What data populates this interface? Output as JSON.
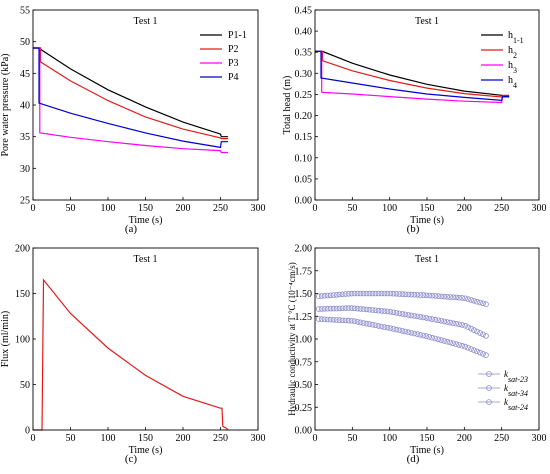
{
  "figure": {
    "panel_letters": [
      "(a)",
      "(b)",
      "(c)",
      "(d)"
    ]
  },
  "chart_data": [
    {
      "id": "a",
      "type": "line",
      "title": "Test 1",
      "xlabel": "Time (s)",
      "ylabel": "Pore water pressure (kPa)",
      "xlim": [
        0,
        300
      ],
      "ylim": [
        25,
        55
      ],
      "xticks": [
        0,
        50,
        100,
        150,
        200,
        250,
        300
      ],
      "yticks": [
        25,
        30,
        35,
        40,
        45,
        50,
        55
      ],
      "legend_position": "top-right",
      "series": [
        {
          "name": "P1-1",
          "color": "#000000",
          "points": [
            [
              0,
              49
            ],
            [
              10,
              49
            ],
            [
              10,
              48.8
            ],
            [
              50,
              45.7
            ],
            [
              100,
              42.4
            ],
            [
              150,
              39.7
            ],
            [
              200,
              37.3
            ],
            [
              250,
              35.4
            ],
            [
              251,
              35
            ],
            [
              260,
              35
            ]
          ]
        },
        {
          "name": "P2",
          "color": "#e41a1c",
          "points": [
            [
              0,
              49
            ],
            [
              10,
              49
            ],
            [
              10,
              46.8
            ],
            [
              50,
              43.8
            ],
            [
              100,
              40.7
            ],
            [
              150,
              38.1
            ],
            [
              200,
              36.2
            ],
            [
              250,
              34.8
            ],
            [
              251,
              34.7
            ],
            [
              260,
              34.7
            ]
          ]
        },
        {
          "name": "P3",
          "color": "#ff00ff",
          "points": [
            [
              0,
              49
            ],
            [
              9,
              49
            ],
            [
              9,
              35.6
            ],
            [
              50,
              34.9
            ],
            [
              100,
              34.2
            ],
            [
              150,
              33.6
            ],
            [
              200,
              33.1
            ],
            [
              250,
              32.8
            ],
            [
              251,
              32.5
            ],
            [
              260,
              32.5
            ]
          ]
        },
        {
          "name": "P4",
          "color": "#0000cd",
          "points": [
            [
              0,
              49
            ],
            [
              8,
              49
            ],
            [
              8,
              40.3
            ],
            [
              50,
              38.7
            ],
            [
              100,
              37.1
            ],
            [
              150,
              35.6
            ],
            [
              200,
              34.3
            ],
            [
              250,
              33.3
            ],
            [
              251,
              34.2
            ],
            [
              260,
              34.2
            ]
          ]
        }
      ]
    },
    {
      "id": "b",
      "type": "line",
      "title": "Test 1",
      "xlabel": "Time (s)",
      "ylabel": "Total head (m)",
      "xlim": [
        0,
        300
      ],
      "ylim": [
        0.0,
        0.45
      ],
      "xticks": [
        0,
        50,
        100,
        150,
        200,
        250,
        300
      ],
      "yticks": [
        0.0,
        0.05,
        0.1,
        0.15,
        0.2,
        0.25,
        0.3,
        0.35,
        0.4,
        0.45
      ],
      "ytick_labels": [
        "0.00",
        "0.05",
        "0.10",
        "0.15",
        "0.20",
        "0.25",
        "0.30",
        "0.35",
        "0.40",
        "0.45"
      ],
      "legend_position": "top-right",
      "legend_labels": [
        {
          "base": "h",
          "sub": "1-1"
        },
        {
          "base": "h",
          "sub": "2"
        },
        {
          "base": "h",
          "sub": "3"
        },
        {
          "base": "h",
          "sub": "4"
        }
      ],
      "series": [
        {
          "name": "h1-1",
          "color": "#000000",
          "points": [
            [
              0,
              0.352
            ],
            [
              10,
              0.352
            ],
            [
              10,
              0.352
            ],
            [
              50,
              0.324
            ],
            [
              100,
              0.296
            ],
            [
              150,
              0.274
            ],
            [
              200,
              0.258
            ],
            [
              250,
              0.248
            ],
            [
              251,
              0.246
            ],
            [
              260,
              0.246
            ]
          ]
        },
        {
          "name": "h2",
          "color": "#e41a1c",
          "points": [
            [
              0,
              0.352
            ],
            [
              10,
              0.352
            ],
            [
              10,
              0.33
            ],
            [
              50,
              0.306
            ],
            [
              100,
              0.283
            ],
            [
              150,
              0.265
            ],
            [
              200,
              0.252
            ],
            [
              250,
              0.244
            ],
            [
              251,
              0.248
            ],
            [
              260,
              0.248
            ]
          ]
        },
        {
          "name": "h3",
          "color": "#ff00ff",
          "points": [
            [
              0,
              0.352
            ],
            [
              9,
              0.352
            ],
            [
              9,
              0.255
            ],
            [
              50,
              0.251
            ],
            [
              100,
              0.245
            ],
            [
              150,
              0.239
            ],
            [
              200,
              0.234
            ],
            [
              250,
              0.231
            ],
            [
              251,
              0.244
            ],
            [
              260,
              0.244
            ]
          ]
        },
        {
          "name": "h4",
          "color": "#0000cd",
          "points": [
            [
              0,
              0.352
            ],
            [
              8,
              0.352
            ],
            [
              8,
              0.289
            ],
            [
              50,
              0.277
            ],
            [
              100,
              0.263
            ],
            [
              150,
              0.251
            ],
            [
              200,
              0.243
            ],
            [
              250,
              0.236
            ],
            [
              251,
              0.245
            ],
            [
              260,
              0.245
            ]
          ]
        }
      ]
    },
    {
      "id": "c",
      "type": "line",
      "title": "Test 1",
      "xlabel": "Time (s)",
      "ylabel": "Flux (ml/min)",
      "xlim": [
        0,
        300
      ],
      "ylim": [
        0,
        200
      ],
      "xticks": [
        0,
        50,
        100,
        150,
        200,
        250,
        300
      ],
      "yticks": [
        0,
        50,
        100,
        150,
        200
      ],
      "series": [
        {
          "name": "",
          "color": "#e41a1c",
          "points": [
            [
              0,
              0
            ],
            [
              12,
              0
            ],
            [
              14,
              165
            ],
            [
              50,
              128
            ],
            [
              100,
              90
            ],
            [
              150,
              60
            ],
            [
              200,
              37
            ],
            [
              250,
              24
            ],
            [
              252,
              24
            ],
            [
              253,
              4
            ],
            [
              258,
              2
            ],
            [
              260,
              0
            ]
          ]
        }
      ]
    },
    {
      "id": "d",
      "type": "scatter",
      "title": "Test 1",
      "xlabel": "Time (s)",
      "ylabel": "Hydraulic conductivity at T °C (10⁻⁴cm/s)",
      "xlim": [
        0,
        300
      ],
      "ylim": [
        0.0,
        2.0
      ],
      "xticks": [
        0,
        50,
        100,
        150,
        200,
        250,
        300
      ],
      "yticks": [
        0.0,
        0.25,
        0.5,
        0.75,
        1.0,
        1.25,
        1.5,
        1.75,
        2.0
      ],
      "ytick_labels": [
        "0.00",
        "0.25",
        "0.50",
        "0.75",
        "1.00",
        "1.25",
        "1.50",
        "1.75",
        "2.00"
      ],
      "legend_position": "bottom-right",
      "legend_labels": [
        {
          "base": "k",
          "sub": "sat-23"
        },
        {
          "base": "k",
          "sub": "sat-34"
        },
        {
          "base": "k",
          "sub": "sat-24"
        }
      ],
      "series": [
        {
          "name": "ksat-23",
          "color": "#8888cc",
          "points": [
            [
              5,
              1.22
            ],
            [
              50,
              1.2
            ],
            [
              100,
              1.12
            ],
            [
              150,
              1.03
            ],
            [
              200,
              0.92
            ],
            [
              230,
              0.82
            ]
          ]
        },
        {
          "name": "ksat-34",
          "color": "#8888cc",
          "points": [
            [
              5,
              1.33
            ],
            [
              50,
              1.34
            ],
            [
              100,
              1.3
            ],
            [
              150,
              1.23
            ],
            [
              200,
              1.15
            ],
            [
              230,
              1.03
            ]
          ]
        },
        {
          "name": "ksat-24",
          "color": "#8888cc",
          "points": [
            [
              5,
              1.47
            ],
            [
              50,
              1.5
            ],
            [
              100,
              1.5
            ],
            [
              150,
              1.48
            ],
            [
              200,
              1.45
            ],
            [
              230,
              1.38
            ]
          ]
        }
      ]
    }
  ]
}
